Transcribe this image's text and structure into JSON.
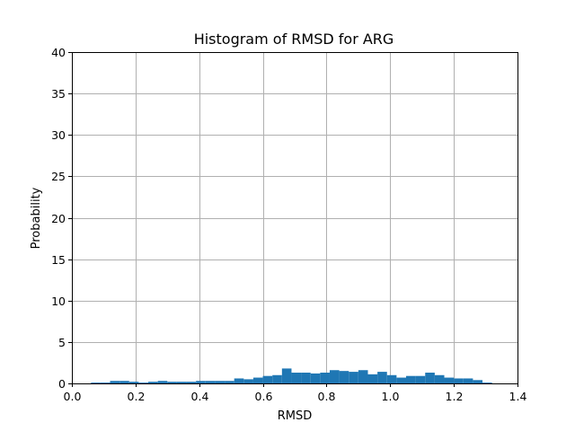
{
  "chart_data": {
    "type": "bar",
    "title": "Histogram of RMSD for ARG",
    "xlabel": "RMSD",
    "ylabel": "Probability",
    "xlim": [
      0.0,
      1.4
    ],
    "ylim": [
      0,
      40
    ],
    "xticks": [
      "0.0",
      "0.2",
      "0.4",
      "0.6",
      "0.8",
      "1.0",
      "1.2",
      "1.4"
    ],
    "yticks": [
      "0",
      "5",
      "10",
      "15",
      "20",
      "25",
      "30",
      "35",
      "40"
    ],
    "grid": true,
    "color": "#1f77b4",
    "bin_width": 0.03,
    "bins_start": [
      0.06,
      0.09,
      0.12,
      0.15,
      0.18,
      0.21,
      0.24,
      0.27,
      0.3,
      0.33,
      0.36,
      0.39,
      0.42,
      0.45,
      0.48,
      0.51,
      0.54,
      0.57,
      0.6,
      0.63,
      0.66,
      0.69,
      0.72,
      0.75,
      0.78,
      0.81,
      0.84,
      0.87,
      0.9,
      0.93,
      0.96,
      0.99,
      1.02,
      1.05,
      1.08,
      1.11,
      1.14,
      1.17,
      1.2,
      1.23,
      1.26,
      1.29
    ],
    "values": [
      0.1,
      0.1,
      0.3,
      0.3,
      0.2,
      0.1,
      0.2,
      0.3,
      0.2,
      0.2,
      0.2,
      0.3,
      0.3,
      0.3,
      0.3,
      0.6,
      0.5,
      0.7,
      0.9,
      1.0,
      1.8,
      1.3,
      1.3,
      1.2,
      1.3,
      1.6,
      1.5,
      1.4,
      1.6,
      1.1,
      1.4,
      1.0,
      0.7,
      0.9,
      0.9,
      1.3,
      1.0,
      0.7,
      0.6,
      0.6,
      0.4,
      0.1
    ]
  }
}
